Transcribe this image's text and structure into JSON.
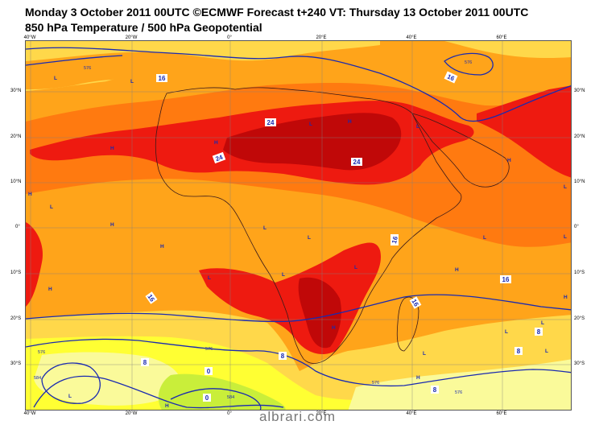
{
  "header": {
    "line1": "Monday 3 October 2011 00UTC ©ECMWF Forecast t+240 VT: Thursday 13 October 2011 00UTC",
    "line2": "850 hPa Temperature / 500 hPa Geopotential"
  },
  "axes": {
    "lon_labels": [
      "40°W",
      "20°W",
      "0°",
      "20°E",
      "40°E",
      "60°E"
    ],
    "lat_labels": [
      "30°N",
      "20°N",
      "10°N",
      "0°",
      "10°S",
      "20°S",
      "30°S"
    ]
  },
  "colors": {
    "cool_yellow_green": "#c9ee3a",
    "pale_yellow": "#fafa9a",
    "yellow": "#ffff33",
    "light_orange": "#ffd84a",
    "orange": "#ffa41a",
    "dark_orange": "#ff7a10",
    "red": "#ee1a10",
    "dark_red": "#c00808",
    "contour_blue": "#1a2ab0",
    "coast": "#3a1a1a"
  },
  "temperature_labels": [
    "16",
    "16",
    "24",
    "24",
    "24",
    "16",
    "16",
    "16",
    "16",
    "8",
    "8",
    "8",
    "0",
    "0",
    "8",
    "8"
  ],
  "geopotential_labels": [
    "576",
    "576",
    "576",
    "576",
    "576",
    "576",
    "584",
    "584"
  ],
  "pressure_centers": [
    "L",
    "L",
    "H",
    "H",
    "L",
    "H",
    "L",
    "H",
    "H",
    "L",
    "L",
    "H",
    "H",
    "L",
    "L",
    "L",
    "L",
    "H",
    "L",
    "H",
    "L",
    "H",
    "L",
    "L",
    "L",
    "L",
    "H",
    "H",
    "L",
    "H",
    "L"
  ],
  "watermark": "albrari.com"
}
